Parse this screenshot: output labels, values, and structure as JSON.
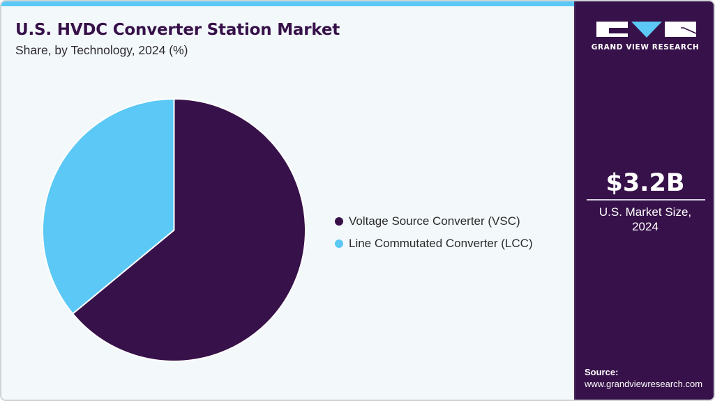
{
  "header": {
    "title": "U.S. HVDC Converter Station Market",
    "subtitle": "Share, by Technology, 2024 (%)"
  },
  "colors": {
    "brand_dark": "#371149",
    "brand_cyan": "#5bc8f5",
    "background": "#f3f8fb"
  },
  "legend": {
    "items": [
      {
        "label": "Voltage Source Converter (VSC)",
        "color": "#371149"
      },
      {
        "label": "Line Commutated Converter (LCC)",
        "color": "#5bc8f5"
      }
    ]
  },
  "sidebar": {
    "logo_text": "GRAND VIEW RESEARCH",
    "market_value": "$3.2B",
    "market_label_line1": "U.S. Market Size,",
    "market_label_line2": "2024",
    "source_label": "Source:",
    "source_url": "www.grandviewresearch.com"
  },
  "chart_data": {
    "type": "pie",
    "title": "U.S. HVDC Converter Station Market",
    "subtitle": "Share, by Technology, 2024 (%)",
    "categories": [
      "Voltage Source Converter (VSC)",
      "Line Commutated Converter (LCC)"
    ],
    "values": [
      64.0,
      36.0
    ],
    "colors": [
      "#371149",
      "#5bc8f5"
    ],
    "start_angle_deg": 0,
    "direction": "clockwise",
    "legend_position": "right",
    "data_labels": false
  }
}
